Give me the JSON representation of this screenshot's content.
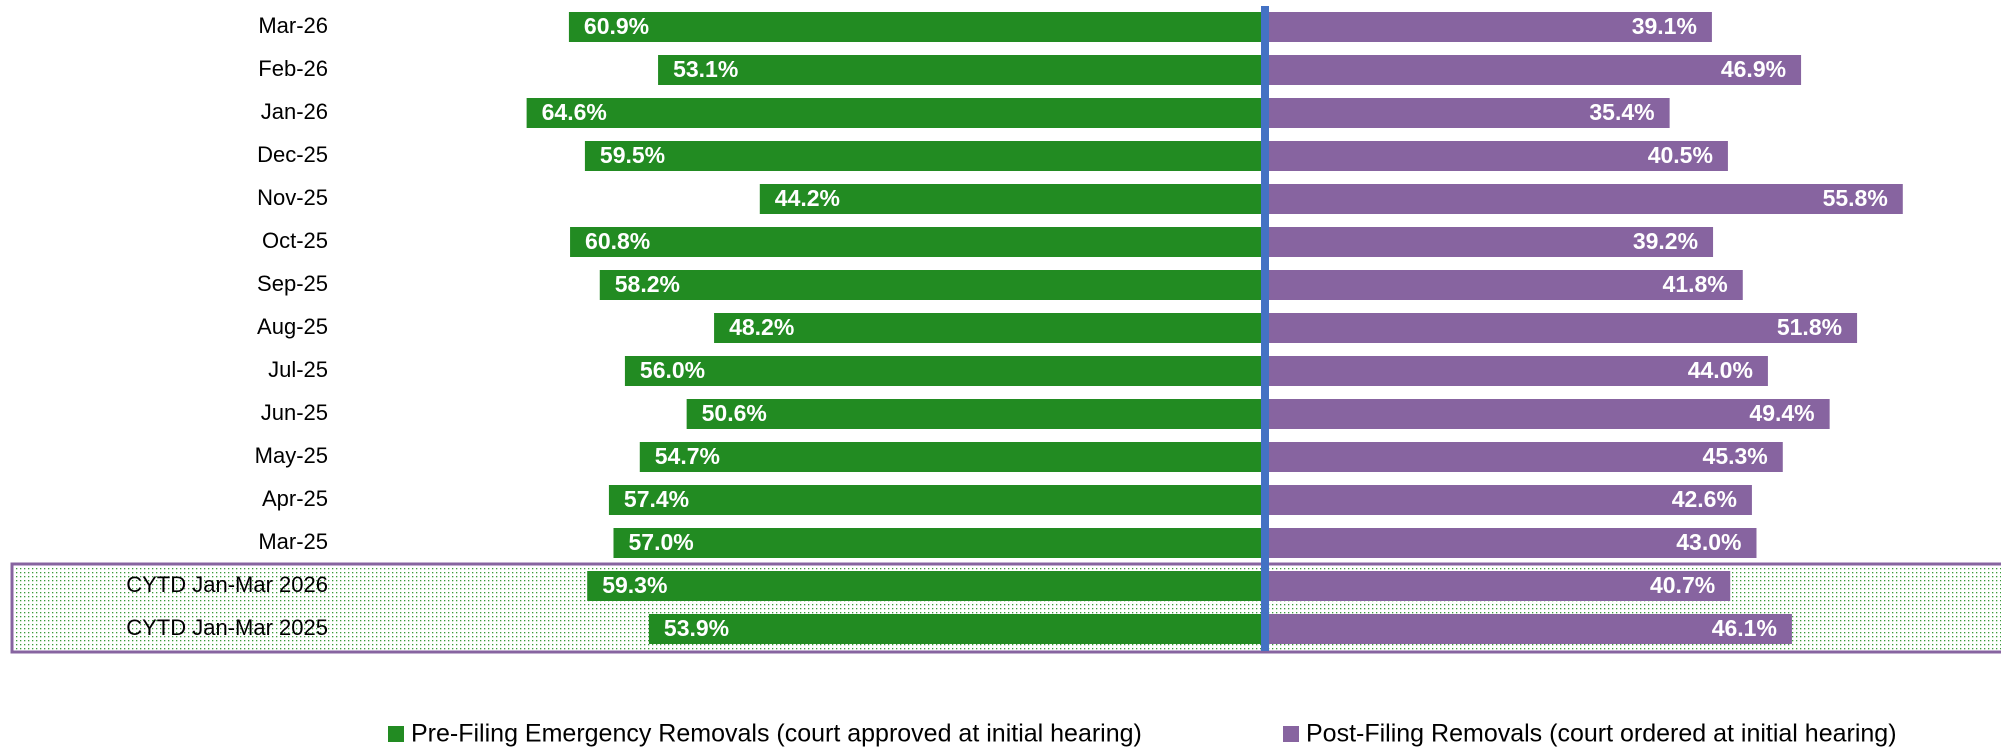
{
  "chart_data": {
    "type": "diverging_bar",
    "categories": [
      "Mar-26",
      "Feb-26",
      "Jan-26",
      "Dec-25",
      "Nov-25",
      "Oct-25",
      "Sep-25",
      "Aug-25",
      "Jul-25",
      "Jun-25",
      "May-25",
      "Apr-25",
      "Mar-25",
      "CYTD Jan-Mar 2026",
      "CYTD Jan-Mar 2025"
    ],
    "series": [
      {
        "name": "Pre-Filing Emergency Removals (court approved at initial hearing)",
        "color": "#228B22",
        "values": [
          60.9,
          53.1,
          64.6,
          59.5,
          44.2,
          60.8,
          58.2,
          48.2,
          56.0,
          50.6,
          54.7,
          57.4,
          57.0,
          59.3,
          53.9
        ],
        "value_labels": [
          "60.9%",
          "53.1%",
          "64.6%",
          "59.5%",
          "44.2%",
          "60.8%",
          "58.2%",
          "48.2%",
          "56.0%",
          "50.6%",
          "54.7%",
          "57.4%",
          "57.0%",
          "59.3%",
          "53.9%"
        ]
      },
      {
        "name": "Post-Filing Removals (court ordered at initial hearing)",
        "color": "#8764A0",
        "values": [
          39.1,
          46.9,
          35.4,
          40.5,
          55.8,
          39.2,
          41.8,
          51.8,
          44.0,
          49.4,
          45.3,
          42.6,
          43.0,
          40.7,
          46.1
        ],
        "value_labels": [
          "39.1%",
          "46.9%",
          "35.4%",
          "40.5%",
          "55.8%",
          "39.2%",
          "41.8%",
          "51.8%",
          "44.0%",
          "49.4%",
          "45.3%",
          "42.6%",
          "43.0%",
          "40.7%",
          "46.1%"
        ]
      }
    ]
  }
}
